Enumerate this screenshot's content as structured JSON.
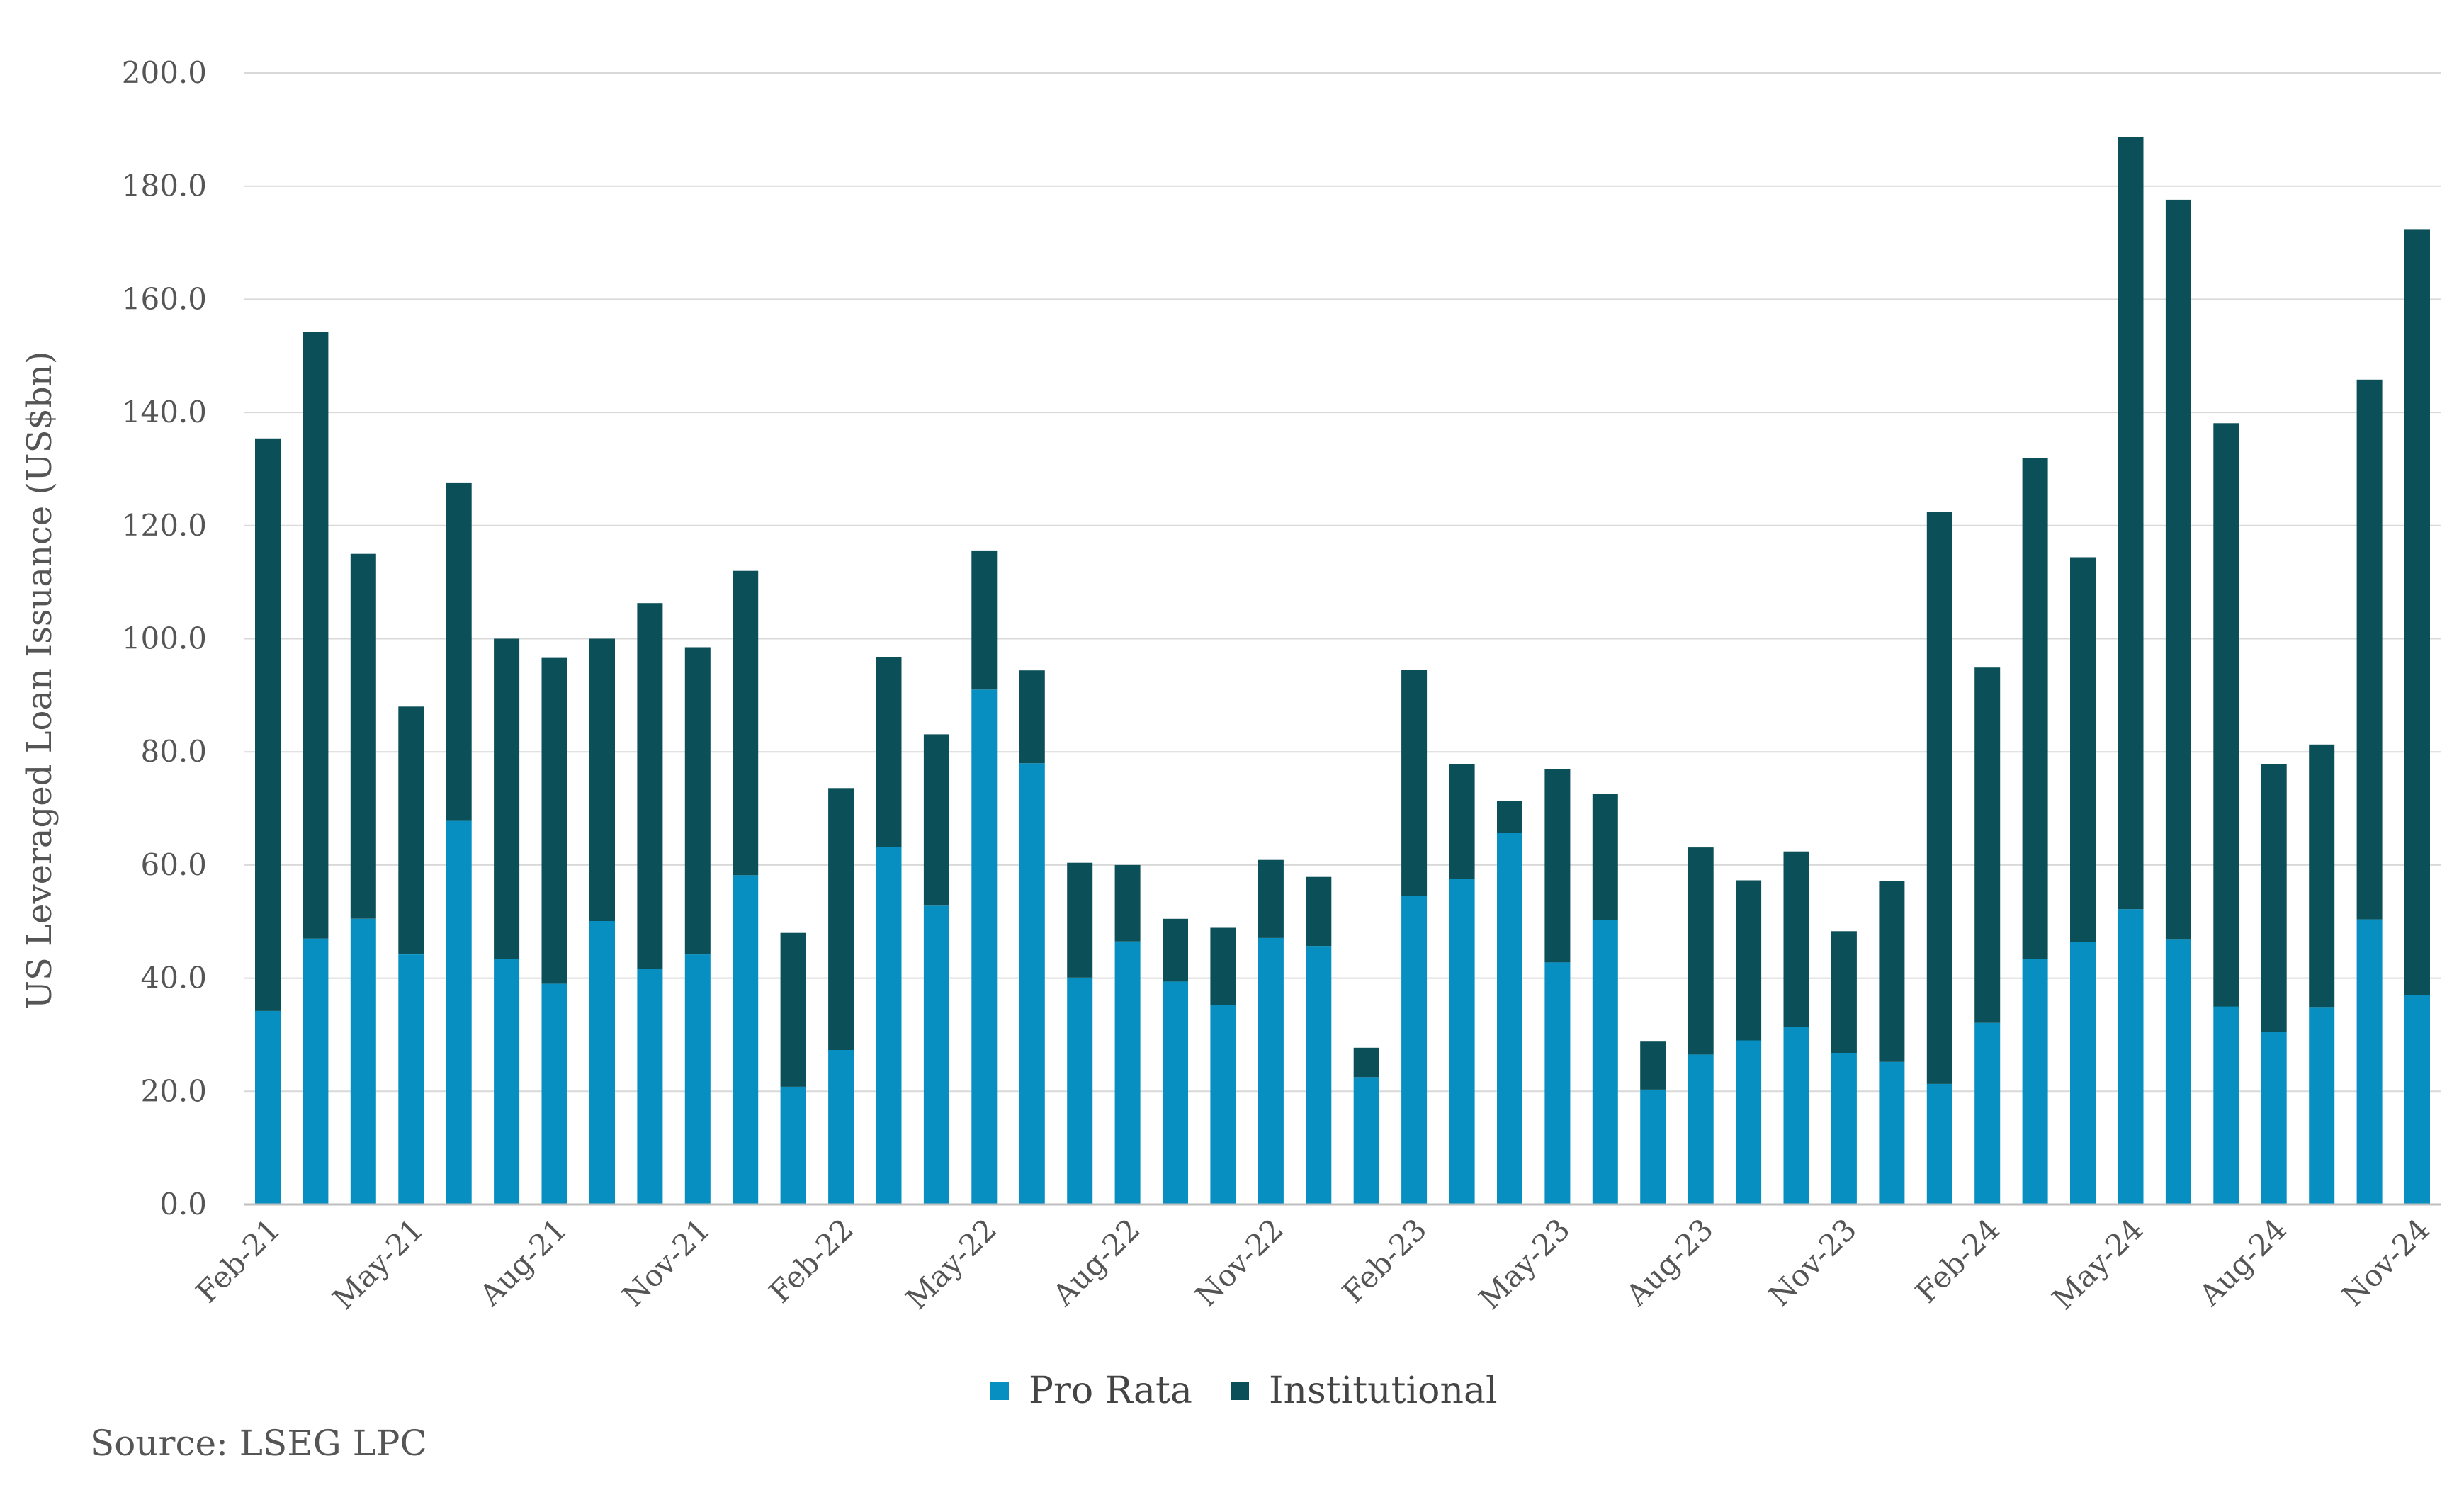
{
  "chart_data": {
    "type": "bar",
    "stacked": true,
    "title": "",
    "xlabel": "",
    "ylabel": "US Leveraged Loan Issuance (US$bn)",
    "ylim": [
      0,
      200
    ],
    "yticks": [
      "0.0",
      "20.0",
      "40.0",
      "60.0",
      "80.0",
      "100.0",
      "120.0",
      "140.0",
      "160.0",
      "180.0",
      "200.0"
    ],
    "grid": true,
    "legend_position": "bottom",
    "categories": [
      "Feb-21",
      "Mar-21",
      "Apr-21",
      "May-21",
      "Jun-21",
      "Jul-21",
      "Aug-21",
      "Sep-21",
      "Oct-21",
      "Nov-21",
      "Dec-21",
      "Jan-22",
      "Feb-22",
      "Mar-22",
      "Apr-22",
      "May-22",
      "Jun-22",
      "Jul-22",
      "Aug-22",
      "Sep-22",
      "Oct-22",
      "Nov-22",
      "Dec-22",
      "Jan-23",
      "Feb-23",
      "Mar-23",
      "Apr-23",
      "May-23",
      "Jun-23",
      "Jul-23",
      "Aug-23",
      "Sep-23",
      "Oct-23",
      "Nov-23",
      "Dec-23",
      "Jan-24",
      "Feb-24",
      "Mar-24",
      "Apr-24",
      "May-24",
      "Jun-24",
      "Jul-24",
      "Aug-24",
      "Sep-24",
      "Oct-24",
      "Nov-24"
    ],
    "tick_labels": [
      "Feb-21",
      "May-21",
      "Aug-21",
      "Nov-21",
      "Feb-22",
      "May-22",
      "Aug-22",
      "Nov-22",
      "Feb-23",
      "May-23",
      "Aug-23",
      "Nov-23",
      "Feb-24",
      "May-24",
      "Aug-24",
      "Nov-24"
    ],
    "series": [
      {
        "name": "Pro Rata",
        "color": "#068fc0",
        "values": [
          34.2,
          47.0,
          50.5,
          44.2,
          67.8,
          43.4,
          39.0,
          50.1,
          41.7,
          44.2,
          58.2,
          20.8,
          27.3,
          63.2,
          52.8,
          91.0,
          78.0,
          40.1,
          46.5,
          39.4,
          35.3,
          47.1,
          45.7,
          22.5,
          54.6,
          57.6,
          65.7,
          42.8,
          50.3,
          20.3,
          26.5,
          29.0,
          31.4,
          26.8,
          25.2,
          21.3,
          32.1,
          43.4,
          46.4,
          52.2,
          46.8,
          35.0,
          30.5,
          34.9,
          50.4,
          37.0
        ]
      },
      {
        "name": "Institutional",
        "color": "#0b4f58",
        "values": [
          101.2,
          107.2,
          64.5,
          43.8,
          59.7,
          56.6,
          57.6,
          49.9,
          64.6,
          54.3,
          53.8,
          27.2,
          46.3,
          33.6,
          30.3,
          24.6,
          16.4,
          20.3,
          13.5,
          11.1,
          13.6,
          13.8,
          12.2,
          5.2,
          39.9,
          20.3,
          5.6,
          34.2,
          22.3,
          8.6,
          36.6,
          28.3,
          31.0,
          21.5,
          32.0,
          101.1,
          62.8,
          88.5,
          68.0,
          136.4,
          130.8,
          103.1,
          47.3,
          46.4,
          95.4,
          135.4
        ]
      }
    ]
  },
  "source": "Source: LSEG LPC"
}
